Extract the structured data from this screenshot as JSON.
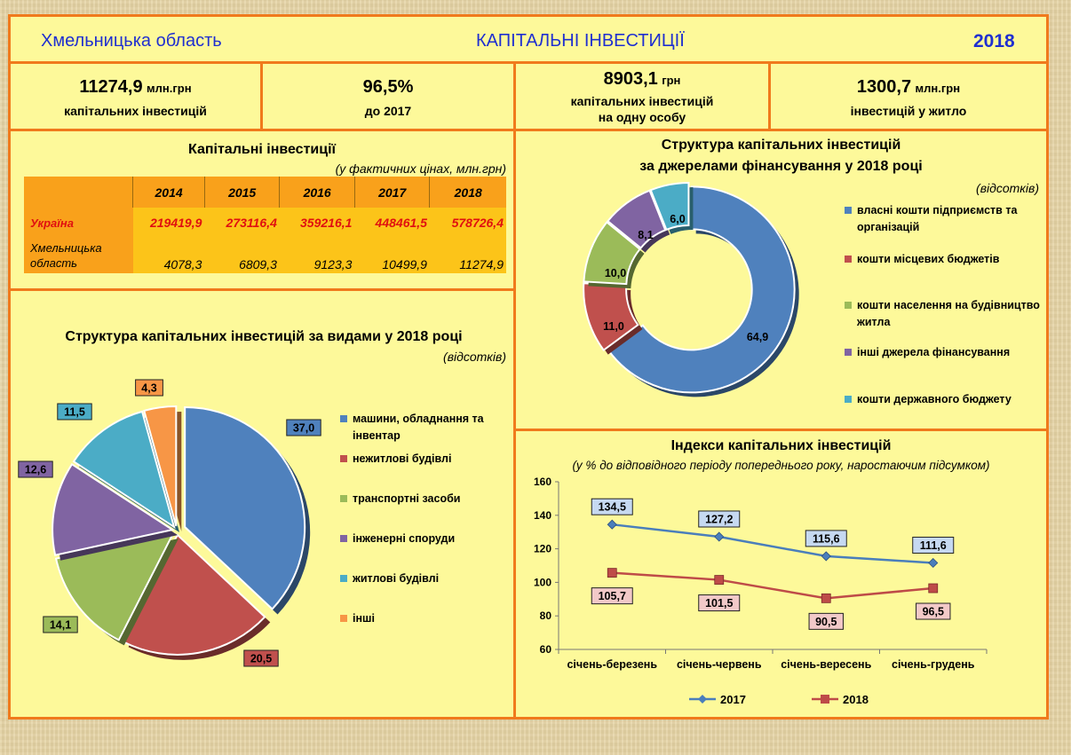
{
  "header": {
    "region": "Хмельницька область",
    "title": "КАПІТАЛЬНІ ІНВЕСТИЦІЇ",
    "year": "2018"
  },
  "kpis": [
    {
      "value": "11274,9",
      "unit": "млн.грн",
      "label": "капітальних інвестицій",
      "label2": ""
    },
    {
      "value": "96,5%",
      "unit": "",
      "label": "до 2017",
      "label2": ""
    },
    {
      "value": "8903,1",
      "unit": "грн",
      "label": "капітальних інвестицій",
      "label2": "на одну особу"
    },
    {
      "value": "1300,7",
      "unit": "млн.грн",
      "label": "інвестицій у житло",
      "label2": ""
    }
  ],
  "table": {
    "title": "Капітальні інвестиції",
    "subtitle": "(у фактичних цінах, млн.грн)",
    "years": [
      "2014",
      "2015",
      "2016",
      "2017",
      "2018"
    ],
    "rows": [
      {
        "label": "Україна",
        "values": [
          "219419,9",
          "273116,4",
          "359216,1",
          "448461,5",
          "578726,4"
        ]
      },
      {
        "label": "Хмельницька область",
        "values": [
          "4078,3",
          "6809,3",
          "9123,3",
          "10499,9",
          "11274,9"
        ]
      }
    ]
  },
  "chart_data": [
    {
      "type": "pie",
      "title": "Структура капітальних інвестицій за видами у 2018 році",
      "subtitle": "(відсотків)",
      "categories": [
        "машини, обладнання та інвентар",
        "нежитлові будівлі",
        "транспортні засоби",
        "інженерні споруди",
        "житлові будівлі",
        "інші"
      ],
      "values": [
        37.0,
        20.5,
        14.1,
        12.6,
        11.5,
        4.3
      ],
      "labels": [
        "37,0",
        "20,5",
        "14,1",
        "12,6",
        "11,5",
        "4,3"
      ],
      "colors": [
        "#4f81bd",
        "#c0504d",
        "#9bbb59",
        "#8064a2",
        "#4bacc6",
        "#f79646"
      ],
      "legend": "right"
    },
    {
      "type": "pie",
      "subtype": "doughnut",
      "title": "Структура капітальних інвестицій",
      "title2": "за джерелами фінансування у 2018 році",
      "subtitle": "(відсотків)",
      "categories": [
        "власні кошти підприємств та організацій",
        "кошти місцевих бюджетів",
        "кошти населення на будівництво житла",
        "інші джерела фінансування",
        "кошти державного бюджету"
      ],
      "values": [
        64.9,
        11.0,
        10.0,
        8.1,
        6.0
      ],
      "labels": [
        "64,9",
        "11,0",
        "10,0",
        "8,1",
        "6,0"
      ],
      "colors": [
        "#4f81bd",
        "#c0504d",
        "#9bbb59",
        "#8064a2",
        "#4bacc6"
      ],
      "legend": "right"
    },
    {
      "type": "line",
      "title": "Індекси капітальних інвестицій",
      "subtitle": "(у % до відповідного періоду попереднього року, наростаючим підсумком)",
      "categories": [
        "січень-березень",
        "січень-червень",
        "січень-вересень",
        "січень-грудень"
      ],
      "series": [
        {
          "name": "2017",
          "values": [
            134.5,
            127.2,
            115.6,
            111.6
          ],
          "labels": [
            "134,5",
            "127,2",
            "115,6",
            "111,6"
          ],
          "color": "#4a7ebb"
        },
        {
          "name": "2018",
          "values": [
            105.7,
            101.5,
            90.5,
            96.5
          ],
          "labels": [
            "105,7",
            "101,5",
            "90,5",
            "96,5"
          ],
          "color": "#be4b48"
        }
      ],
      "ylim": [
        60,
        160
      ],
      "yticks": [
        "60",
        "80",
        "100",
        "120",
        "140",
        "160"
      ],
      "grid": false,
      "legend": "bottom"
    }
  ]
}
